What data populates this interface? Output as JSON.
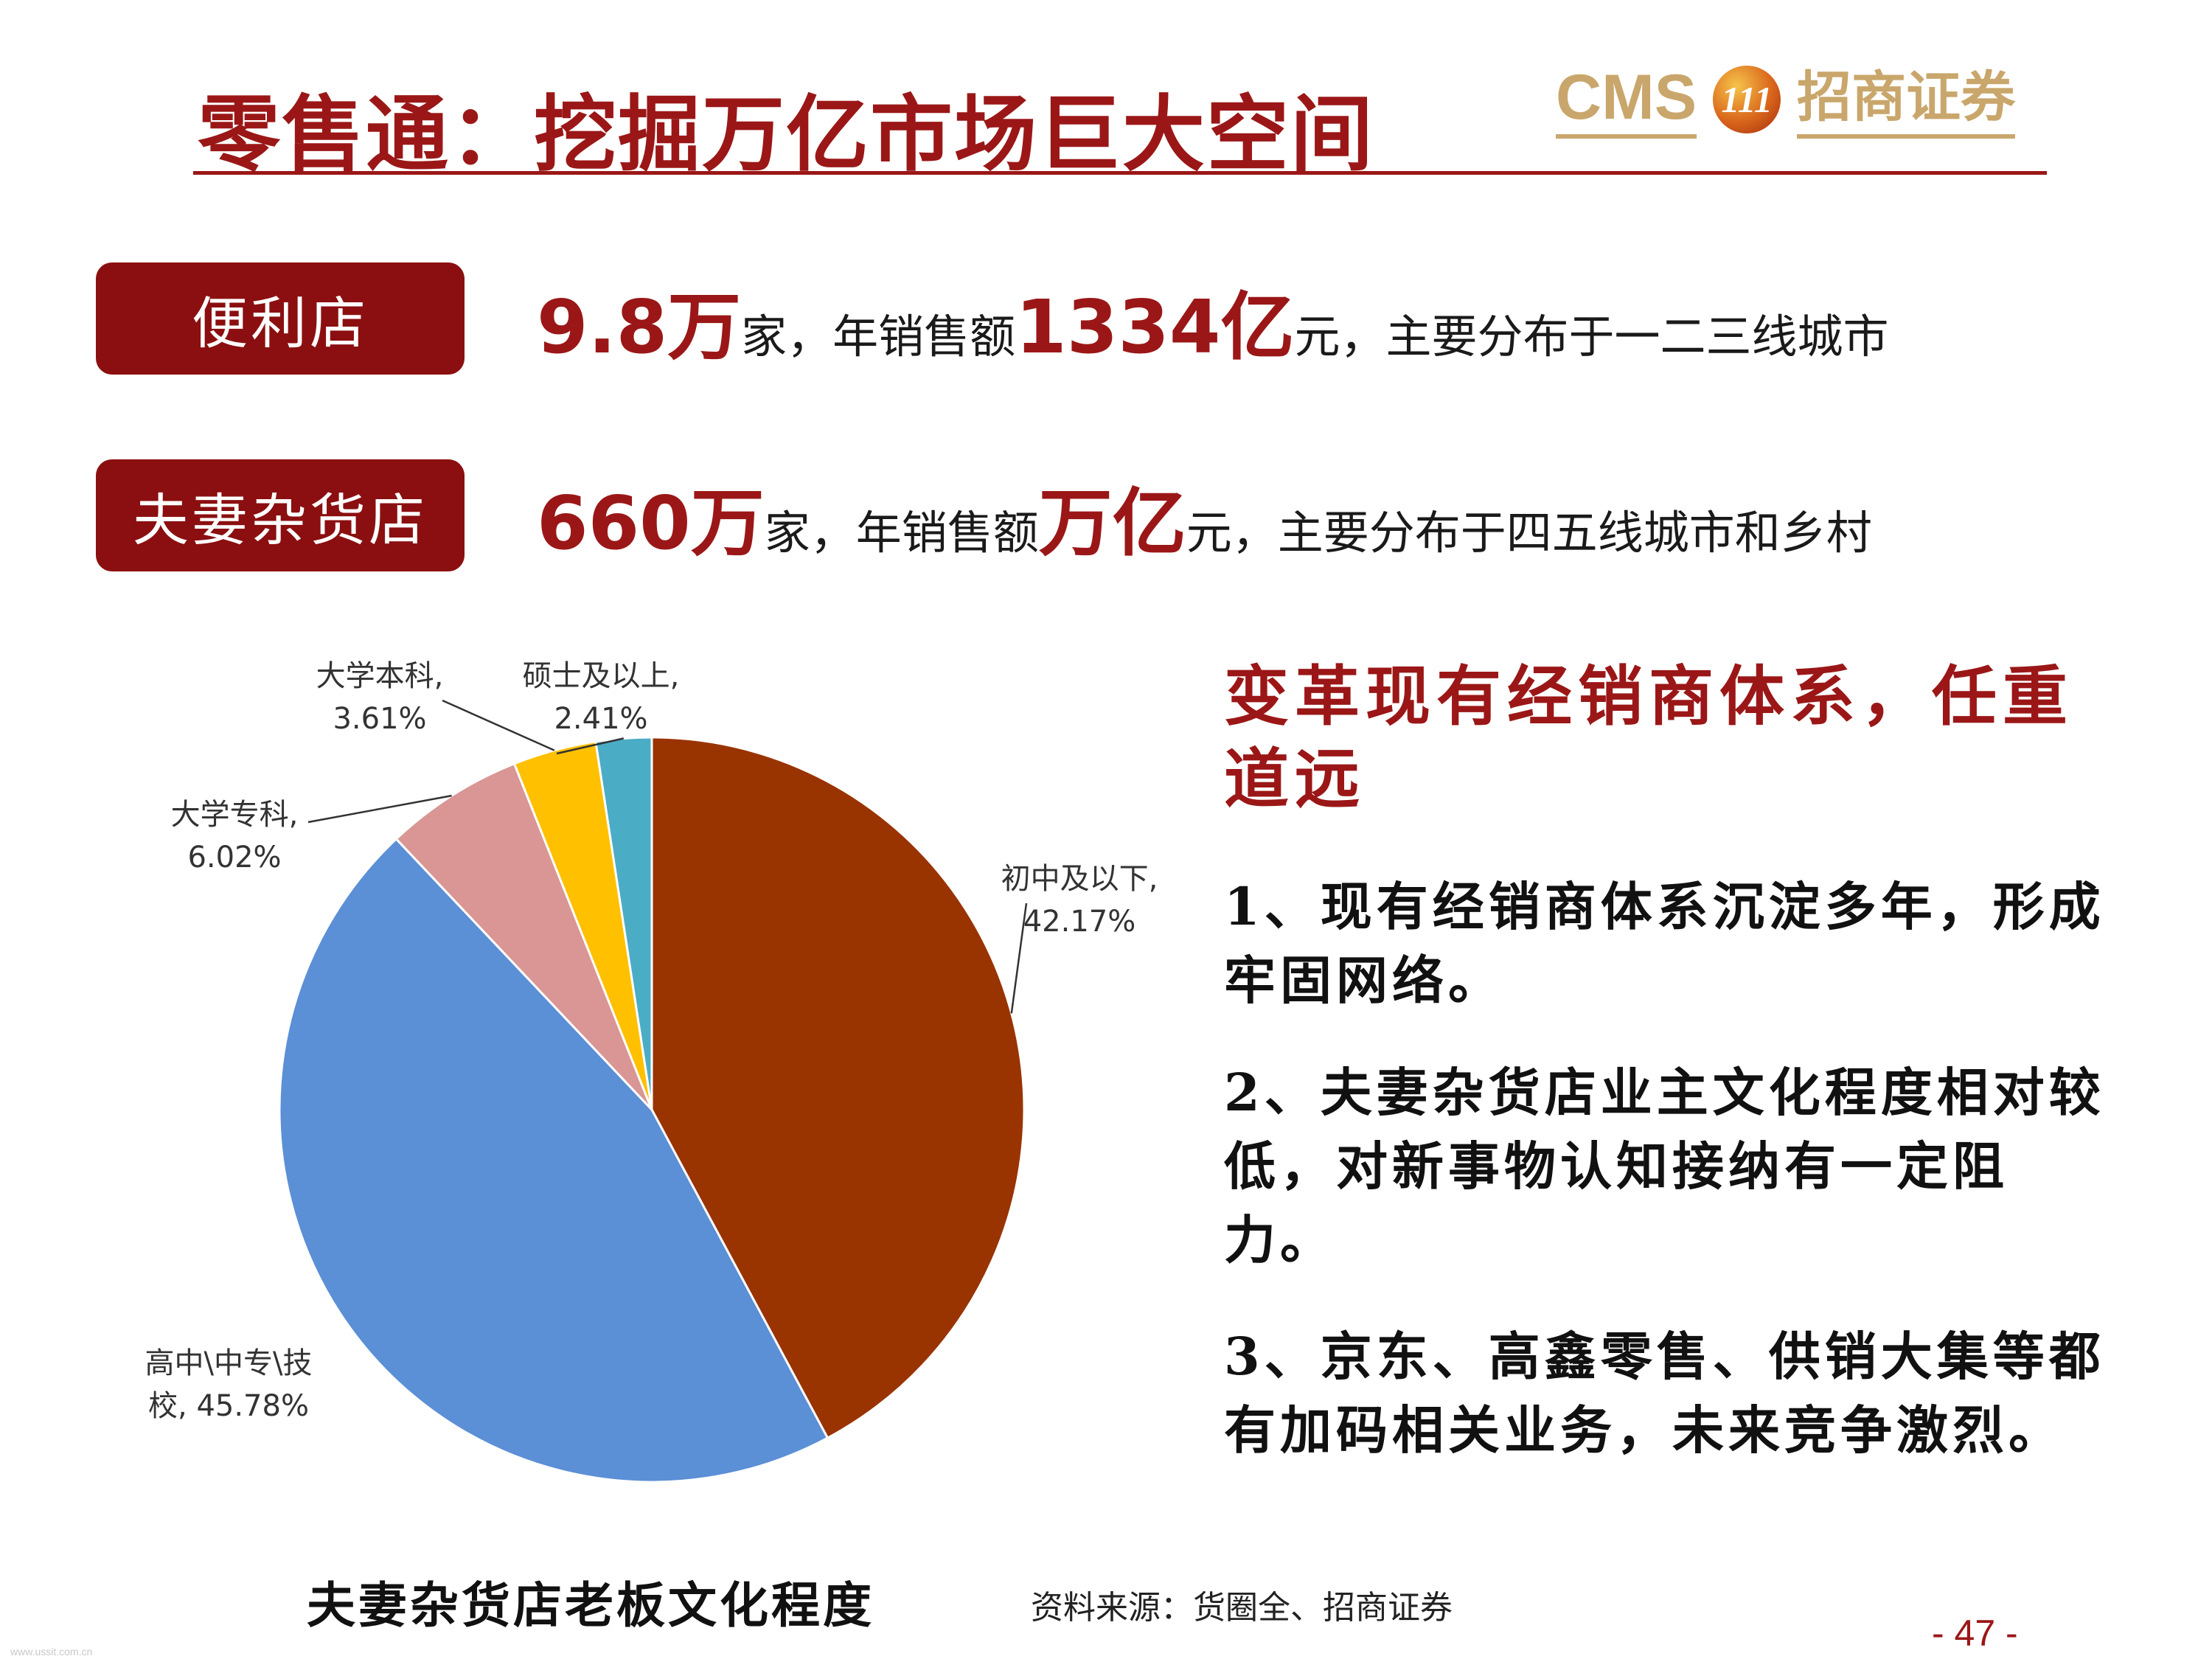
{
  "header": {
    "title": "零售通：挖掘万亿市场巨大空间",
    "logo_latin": "CMS",
    "logo_mark": "111",
    "logo_cn": "招商证券"
  },
  "stores": [
    {
      "label": "便利店",
      "count": "9.8万",
      "count_unit": "家，年销售额",
      "sales": "1334亿",
      "tail": "元，主要分布于一二三线城市"
    },
    {
      "label": "夫妻杂货店",
      "count": "660万",
      "count_unit": "家，年销售额",
      "sales": "万亿",
      "tail": "元，主要分布于四五线城市和乡村"
    }
  ],
  "chart_data": {
    "type": "pie",
    "title": "夫妻杂货店老板文化程度",
    "slices": [
      {
        "label": "初中及以下",
        "value": 42.17,
        "value_label": "42.17%",
        "color": "#993300"
      },
      {
        "label": "高中\\中专\\技校",
        "value": 45.78,
        "value_label": "45.78%",
        "color": "#5b8fd6"
      },
      {
        "label": "大学专科",
        "value": 6.02,
        "value_label": "6.02%",
        "color": "#d99694"
      },
      {
        "label": "大学本科",
        "value": 3.61,
        "value_label": "3.61%",
        "color": "#ffc000"
      },
      {
        "label": "硕士及以上",
        "value": 2.41,
        "value_label": "2.41%",
        "color": "#4bacc6"
      }
    ],
    "label_lines": {
      "s0": [
        "初中及以下,",
        "42.17%"
      ],
      "s1": [
        "高中\\中专\\技",
        "校, 45.78%"
      ],
      "s2": [
        "大学专科,",
        "6.02%"
      ],
      "s3": [
        "大学本科,",
        "3.61%"
      ],
      "s4": [
        "硕士及以上,",
        "2.41%"
      ]
    }
  },
  "bullets": {
    "title": "变革现有经销商体系，任重道远",
    "items": [
      "1、现有经销商体系沉淀多年，形成牢固网络。",
      "2、夫妻杂货店业主文化程度相对较低，对新事物认知接纳有一定阻力。",
      "3、京东、高鑫零售、供销大集等都有加码相关业务，未来竞争激烈。"
    ]
  },
  "footer": {
    "caption": "夫妻杂货店老板文化程度",
    "source": "资料来源：货圈全、招商证券",
    "page_number": "- 47 -",
    "watermark": "www.ussit.com.cn"
  }
}
